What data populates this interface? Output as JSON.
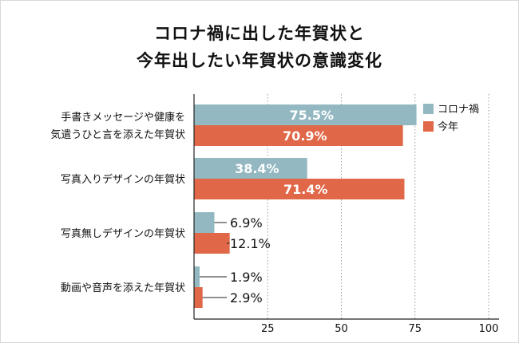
{
  "chart_data": {
    "type": "bar",
    "orientation": "horizontal",
    "title": [
      "コロナ禍に出した年賀状と",
      "今年出したい年賀状の意識変化"
    ],
    "categories": [
      [
        "手書きメッセージや健康を",
        "気遣うひと言を添えた年賀状"
      ],
      [
        "写真入りデザインの年賀状"
      ],
      [
        "写真無しデザインの年賀状"
      ],
      [
        "動画や音声を添えた年賀状"
      ]
    ],
    "series": [
      {
        "name": "コロナ禍",
        "values": [
          75.5,
          38.4,
          6.9,
          1.9
        ],
        "labels": [
          "75.5%",
          "38.4%",
          "6.9%",
          "1.9%"
        ],
        "color": "#93b8c1"
      },
      {
        "name": "今年",
        "values": [
          70.9,
          71.4,
          12.1,
          2.9
        ],
        "labels": [
          "70.9%",
          "71.4%",
          "12.1%",
          "2.9%"
        ],
        "color": "#e06747"
      }
    ],
    "xlim": [
      0,
      100
    ],
    "xticks": [
      25,
      50,
      75,
      100
    ],
    "grid": "vertical dotted",
    "legend": "top-right"
  }
}
